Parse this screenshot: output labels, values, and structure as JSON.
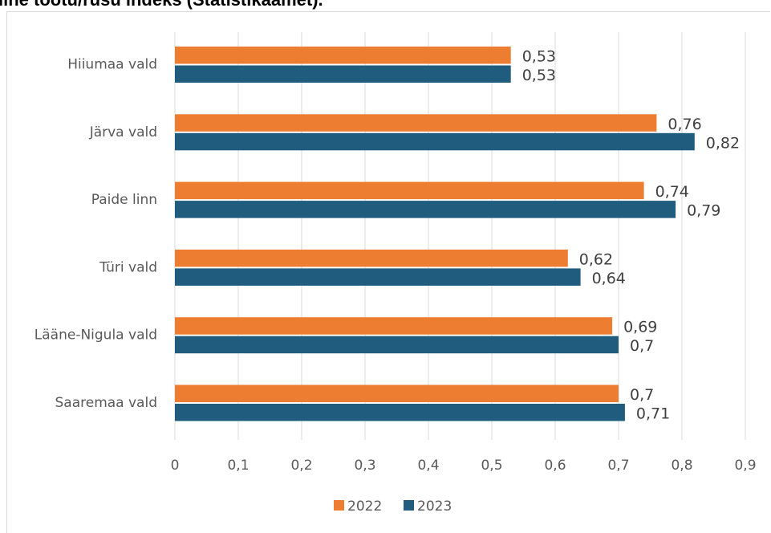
{
  "heading": "line töötu/rusu indeks (Statistikaamet).",
  "chart_data": {
    "type": "bar",
    "orientation": "horizontal",
    "categories": [
      "Hiiumaa vald",
      "Järva vald",
      "Paide linn",
      "Türi vald",
      "Lääne-Nigula vald",
      "Saaremaa vald"
    ],
    "series": [
      {
        "name": "2022",
        "color": "#ed7d31",
        "values": [
          0.53,
          0.76,
          0.74,
          0.62,
          0.69,
          0.7
        ],
        "labels": [
          "0,53",
          "0,76",
          "0,74",
          "0,62",
          "0,69",
          "0,7"
        ]
      },
      {
        "name": "2023",
        "color": "#1f5c7e",
        "values": [
          0.53,
          0.82,
          0.79,
          0.64,
          0.7,
          0.71
        ],
        "labels": [
          "0,53",
          "0,82",
          "0,79",
          "0,64",
          "0,7",
          "0,71"
        ]
      }
    ],
    "xlim": [
      0,
      0.9
    ],
    "xticks": [
      0,
      0.1,
      0.2,
      0.3,
      0.4,
      0.5,
      0.6,
      0.7,
      0.8,
      0.9
    ],
    "xtick_labels": [
      "0",
      "0,1",
      "0,2",
      "0,3",
      "0,4",
      "0,5",
      "0,6",
      "0,7",
      "0,8",
      "0,9"
    ],
    "grid": "vertical",
    "legend": "bottom"
  }
}
